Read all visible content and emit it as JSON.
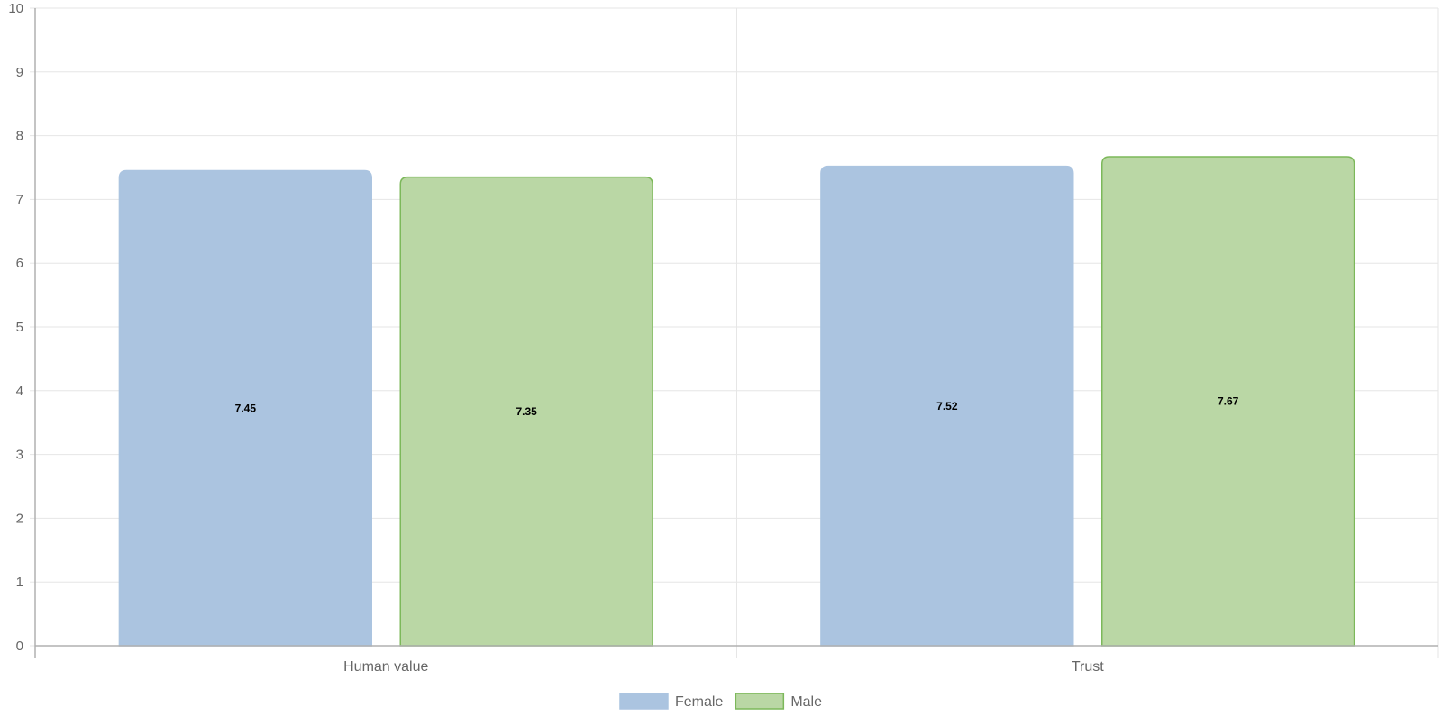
{
  "chart_data": {
    "type": "bar",
    "categories": [
      "Human value",
      "Trust"
    ],
    "series": [
      {
        "name": "Female",
        "values": [
          7.45,
          7.52
        ],
        "color": "#abc4e0",
        "border": "#abc4e0"
      },
      {
        "name": "Male",
        "values": [
          7.35,
          7.67
        ],
        "color": "#bad7a5",
        "border": "#7cb85a"
      }
    ],
    "value_labels": [
      [
        "7.45",
        "7.52"
      ],
      [
        "7.35",
        "7.67"
      ]
    ],
    "ylim": [
      0,
      10
    ],
    "yticks": [
      "0",
      "1",
      "2",
      "3",
      "4",
      "5",
      "6",
      "7",
      "8",
      "9",
      "10"
    ],
    "title": "",
    "xlabel": "",
    "ylabel": "",
    "grid": true,
    "legend_position": "bottom"
  }
}
